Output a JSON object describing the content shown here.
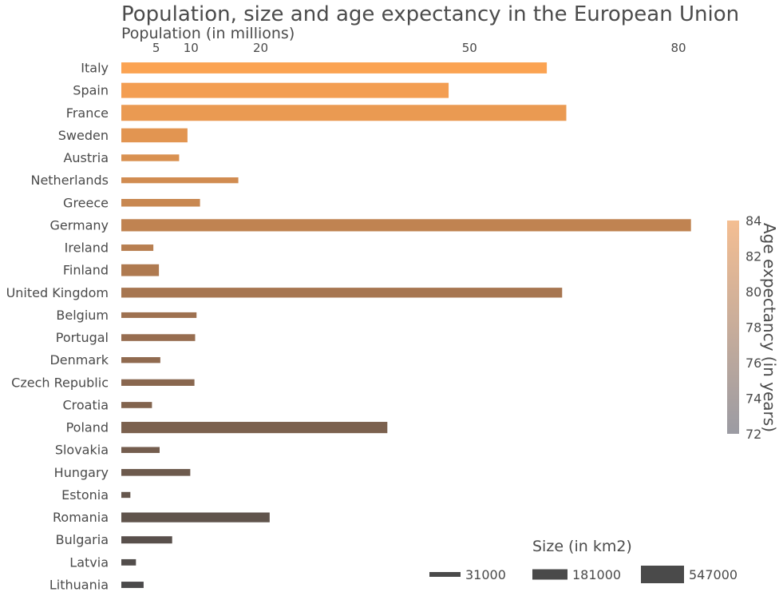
{
  "chart_data": {
    "type": "bar",
    "orientation": "horizontal",
    "title": "Population, size and age expectancy in the European Union",
    "xlabel": "Population (in millions)",
    "x_ticks": [
      5,
      10,
      20,
      50,
      80
    ],
    "xlim": [
      0,
      84
    ],
    "categories": [
      "Italy",
      "Spain",
      "France",
      "Sweden",
      "Austria",
      "Netherlands",
      "Greece",
      "Germany",
      "Ireland",
      "Finland",
      "United Kingdom",
      "Belgium",
      "Portugal",
      "Denmark",
      "Czech Republic",
      "Croatia",
      "Poland",
      "Slovakia",
      "Hungary",
      "Estonia",
      "Romania",
      "Bulgaria",
      "Latvia",
      "Lithuania"
    ],
    "population_millions": [
      61.1,
      47.0,
      63.9,
      9.5,
      8.3,
      16.8,
      11.3,
      81.8,
      4.6,
      5.4,
      63.3,
      10.8,
      10.6,
      5.6,
      10.5,
      4.4,
      38.2,
      5.5,
      9.9,
      1.3,
      21.3,
      7.3,
      2.1,
      3.2
    ],
    "size_km2": [
      301000,
      506000,
      547000,
      450000,
      84000,
      42000,
      132000,
      357000,
      70000,
      338000,
      244000,
      30500,
      92000,
      43000,
      79000,
      56500,
      313000,
      49000,
      93000,
      45000,
      238000,
      111000,
      65000,
      65000
    ],
    "age_expectancy": [
      83.5,
      83.2,
      82.9,
      82.6,
      82.0,
      81.8,
      81.5,
      81.2,
      81.0,
      80.8,
      80.5,
      80.3,
      80.0,
      79.5,
      78.7,
      78.0,
      77.5,
      76.9,
      76.0,
      75.8,
      74.7,
      74.3,
      73.6,
      73.2
    ],
    "colorbar": {
      "label": "Age expectancy (in years)",
      "ticks": [
        72,
        74,
        76,
        78,
        80,
        82,
        84
      ],
      "range": [
        72,
        84
      ],
      "color_low": "#9b9ba3",
      "color_high": "#f4be92"
    },
    "bar_colors": {
      "top": "#fba352",
      "middle": "#9a6f50",
      "bottom": "#4b4a4b"
    },
    "size_legend": {
      "title": "Size (in km2)",
      "entries": [
        "31000",
        "181000",
        "547000"
      ],
      "values": [
        31000,
        181000,
        547000
      ],
      "color": "#4a4a4a"
    }
  }
}
